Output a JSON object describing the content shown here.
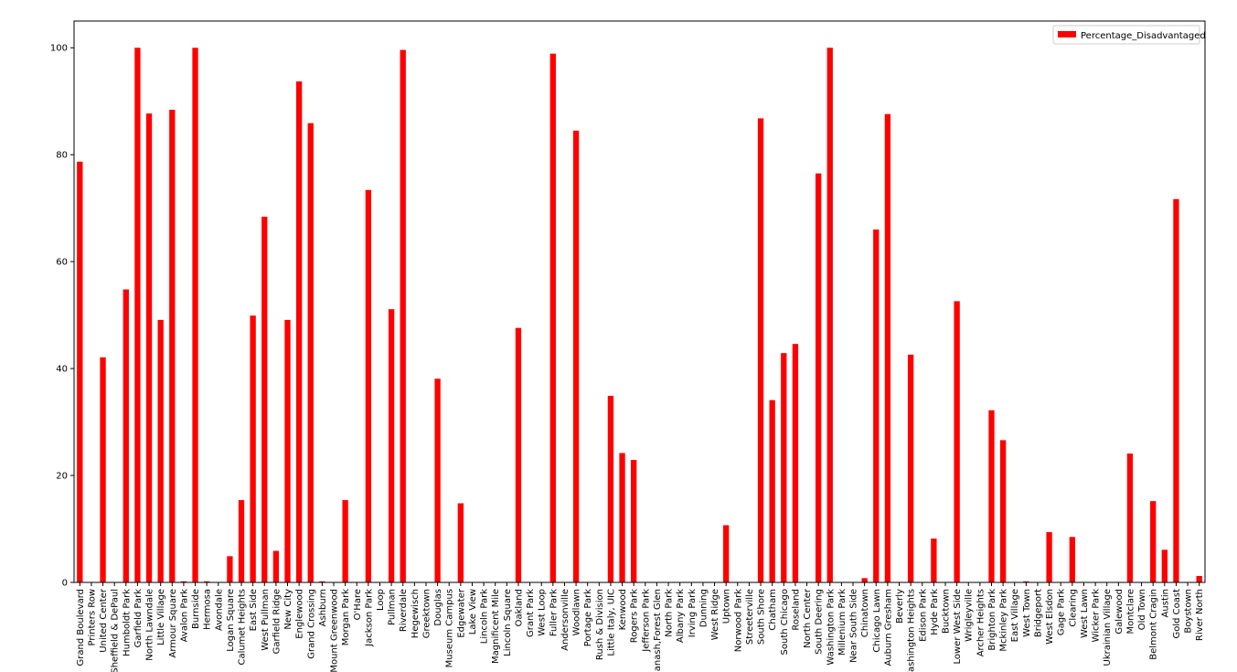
{
  "chart_data": {
    "type": "bar",
    "title": "",
    "xlabel": "",
    "ylabel": "",
    "ylim": [
      0,
      105
    ],
    "yticks": [
      0,
      20,
      40,
      60,
      80,
      100
    ],
    "grid": false,
    "legend_position": "top-right",
    "bar_color": "#ff0000",
    "categories": [
      "Grand Boulevard",
      "Printers Row",
      "United Center",
      "Sheffield & DePaul",
      "Humboldt Park",
      "Garfield Park",
      "North Lawndale",
      "Little Village",
      "Armour Square",
      "Avalon Park",
      "Burnside",
      "Hermosa",
      "Avondale",
      "Logan Square",
      "Calumet Heights",
      "East Side",
      "West Pullman",
      "Garfield Ridge",
      "New City",
      "Englewood",
      "Grand Crossing",
      "Ashburn",
      "Mount Greenwood",
      "Morgan Park",
      "O'Hare",
      "Jackson Park",
      "Loop",
      "Pullman",
      "Riverdale",
      "Hegewisch",
      "Greektown",
      "Douglas",
      "Museum Campus",
      "Edgewater",
      "Lake View",
      "Lincoln Park",
      "Magnificent Mile",
      "Lincoln Square",
      "Oakland",
      "Grant Park",
      "West Loop",
      "Fuller Park",
      "Andersonville",
      "Woodlawn",
      "Portage Park",
      "Rush & Division",
      "Little Italy, UIC",
      "Kenwood",
      "Rogers Park",
      "Jefferson Park",
      "Sauganash,Forest Glen",
      "North Park",
      "Albany Park",
      "Irving Park",
      "Dunning",
      "West Ridge",
      "Uptown",
      "Norwood Park",
      "Streeterville",
      "South Shore",
      "Chatham",
      "South Chicago",
      "Roseland",
      "North Center",
      "South Deering",
      "Washington Park",
      "Millenium Park",
      "Near South Side",
      "Chinatown",
      "Chicago Lawn",
      "Auburn Gresham",
      "Beverly",
      "Washington Heights",
      "Edison Park",
      "Hyde Park",
      "Bucktown",
      "Lower West Side",
      "Wrigleyville",
      "Archer Heights",
      "Brighton Park",
      "Mckinley Park",
      "East Village",
      "West Town",
      "Bridgeport",
      "West Elsdon",
      "Gage Park",
      "Clearing",
      "West Lawn",
      "Wicker Park",
      "Ukrainian Village",
      "Galewood",
      "Montclare",
      "Old Town",
      "Belmont Cragin",
      "Austin",
      "Gold Coast",
      "Boystown",
      "River North"
    ],
    "series": [
      {
        "name": "Percentage_Disadvantaged",
        "values": [
          78.7,
          0,
          42.1,
          0,
          54.8,
          100,
          87.7,
          49.1,
          88.4,
          0.2,
          100,
          0.2,
          0,
          4.9,
          15.4,
          49.9,
          68.4,
          5.9,
          49.1,
          93.7,
          85.9,
          0.2,
          0,
          15.4,
          0,
          73.4,
          0,
          51.1,
          99.6,
          0,
          0,
          38.1,
          0,
          14.8,
          0,
          0,
          0,
          0,
          47.6,
          0,
          0,
          98.9,
          0,
          84.5,
          0,
          0,
          34.9,
          24.2,
          22.9,
          0,
          0,
          0,
          0,
          0,
          0,
          0,
          10.7,
          0,
          0,
          86.8,
          34.1,
          42.9,
          44.6,
          0,
          76.5,
          100,
          0,
          0,
          0.8,
          66,
          87.6,
          0,
          42.6,
          0,
          8.2,
          0,
          52.6,
          0,
          0,
          32.2,
          26.6,
          0,
          0.2,
          0,
          9.4,
          0,
          8.5,
          0,
          0,
          0,
          0,
          24.1,
          0,
          15.2,
          6.1,
          71.7,
          0,
          1.2
        ]
      }
    ]
  }
}
